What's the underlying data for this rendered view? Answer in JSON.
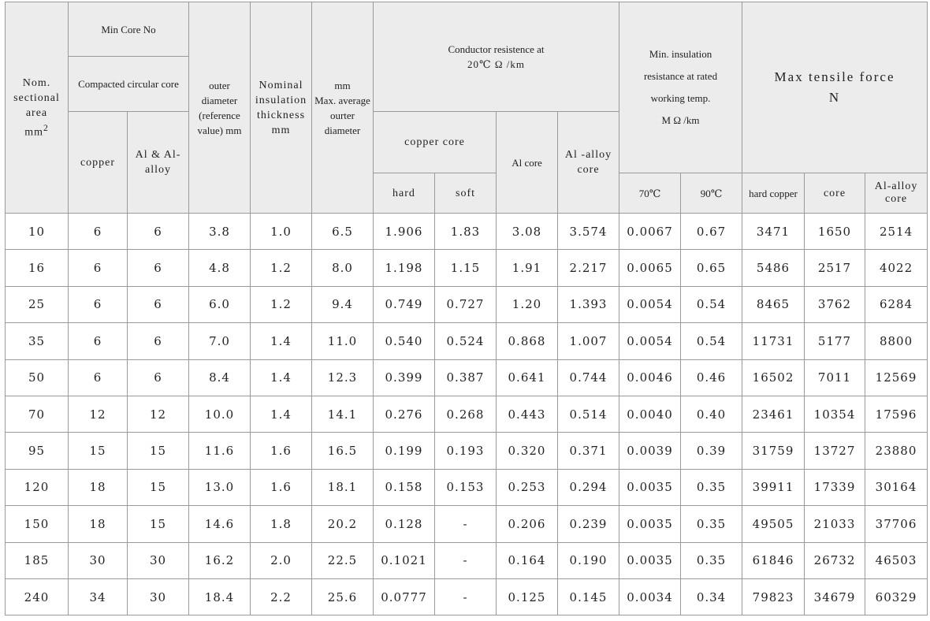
{
  "headers": {
    "nom_line1": "Nom.",
    "nom_line2": "sectional",
    "nom_line3": "area",
    "nom_line4": "mm",
    "nom_sup": "2",
    "min_core_no": "Min Core No",
    "compacted": "Compacted circular core",
    "copper": "copper",
    "al_alloy": "Al & Al-alloy",
    "outer_diameter": "outer diameter (reference value) mm",
    "nominal_insulation": "Nominal insulation thickness mm",
    "max_avg_line1": "mm",
    "max_avg_line2": "Max. average ourter diameter",
    "conductor_resistence": "Conductor resistence at",
    "conductor_resistence_unit": "20℃   Ω /km",
    "copper_core": "copper core",
    "hard": "hard",
    "soft": "soft",
    "al_core": "Al core",
    "al_alloy_core": "Al -alloy core",
    "min_insulation_line1": "Min. insulation",
    "min_insulation_line2": "resistance at rated",
    "min_insulation_line3": "working temp.",
    "min_insulation_unit": "M Ω /km",
    "temp70": "70℃",
    "temp90": "90℃",
    "max_tensile": "Max tensile force",
    "max_tensile_unit": "N",
    "hard_copper": "hard copper",
    "core": "core",
    "al_alloy_core_t": "Al-alloy core"
  },
  "rows": [
    [
      "10",
      "6",
      "6",
      "3.8",
      "1.0",
      "6.5",
      "1.906",
      "1.83",
      "3.08",
      "3.574",
      "0.0067",
      "0.67",
      "3471",
      "1650",
      "2514"
    ],
    [
      "16",
      "6",
      "6",
      "4.8",
      "1.2",
      "8.0",
      "1.198",
      "1.15",
      "1.91",
      "2.217",
      "0.0065",
      "0.65",
      "5486",
      "2517",
      "4022"
    ],
    [
      "25",
      "6",
      "6",
      "6.0",
      "1.2",
      "9.4",
      "0.749",
      "0.727",
      "1.20",
      "1.393",
      "0.0054",
      "0.54",
      "8465",
      "3762",
      "6284"
    ],
    [
      "35",
      "6",
      "6",
      "7.0",
      "1.4",
      "11.0",
      "0.540",
      "0.524",
      "0.868",
      "1.007",
      "0.0054",
      "0.54",
      "11731",
      "5177",
      "8800"
    ],
    [
      "50",
      "6",
      "6",
      "8.4",
      "1.4",
      "12.3",
      "0.399",
      "0.387",
      "0.641",
      "0.744",
      "0.0046",
      "0.46",
      "16502",
      "7011",
      "12569"
    ],
    [
      "70",
      "12",
      "12",
      "10.0",
      "1.4",
      "14.1",
      "0.276",
      "0.268",
      "0.443",
      "0.514",
      "0.0040",
      "0.40",
      "23461",
      "10354",
      "17596"
    ],
    [
      "95",
      "15",
      "15",
      "11.6",
      "1.6",
      "16.5",
      "0.199",
      "0.193",
      "0.320",
      "0.371",
      "0.0039",
      "0.39",
      "31759",
      "13727",
      "23880"
    ],
    [
      "120",
      "18",
      "15",
      "13.0",
      "1.6",
      "18.1",
      "0.158",
      "0.153",
      "0.253",
      "0.294",
      "0.0035",
      "0.35",
      "39911",
      "17339",
      "30164"
    ],
    [
      "150",
      "18",
      "15",
      "14.6",
      "1.8",
      "20.2",
      "0.128",
      "-",
      "0.206",
      "0.239",
      "0.0035",
      "0.35",
      "49505",
      "21033",
      "37706"
    ],
    [
      "185",
      "30",
      "30",
      "16.2",
      "2.0",
      "22.5",
      "0.1021",
      "-",
      "0.164",
      "0.190",
      "0.0035",
      "0.35",
      "61846",
      "26732",
      "46503"
    ],
    [
      "240",
      "34",
      "30",
      "18.4",
      "2.2",
      "25.6",
      "0.0777",
      "-",
      "0.125",
      "0.145",
      "0.0034",
      "0.34",
      "79823",
      "34679",
      "60329"
    ]
  ]
}
